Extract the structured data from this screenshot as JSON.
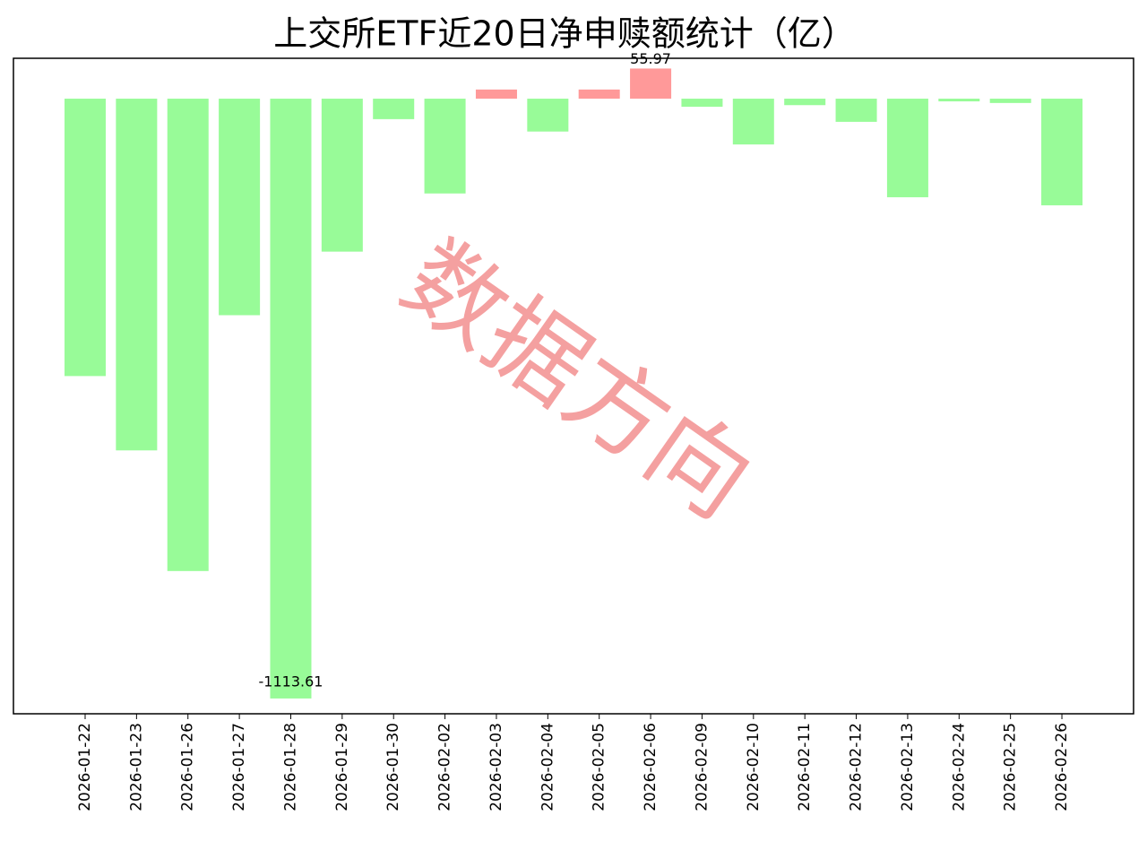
{
  "chart_data": {
    "type": "bar",
    "title": "上交所ETF近20日净申赎额统计（亿）",
    "categories": [
      "2026-01-22",
      "2026-01-23",
      "2026-01-26",
      "2026-01-27",
      "2026-01-28",
      "2026-01-29",
      "2026-01-30",
      "2026-02-02",
      "2026-02-03",
      "2026-02-04",
      "2026-02-05",
      "2026-02-06",
      "2026-02-09",
      "2026-02-10",
      "2026-02-11",
      "2026-02-12",
      "2026-02-13",
      "2026-02-24",
      "2026-02-25",
      "2026-02-26"
    ],
    "values": [
      -515,
      -653,
      -877,
      -402,
      -1113.61,
      -284,
      -38,
      -176,
      17,
      -61,
      17,
      55.97,
      -15,
      -85,
      -12,
      -43,
      -183,
      -5,
      -8,
      -198
    ],
    "positive_color": "#ff9999",
    "negative_color": "#98fb98",
    "ylim": [
      -1142,
      75
    ],
    "watermark": "数据方向"
  }
}
